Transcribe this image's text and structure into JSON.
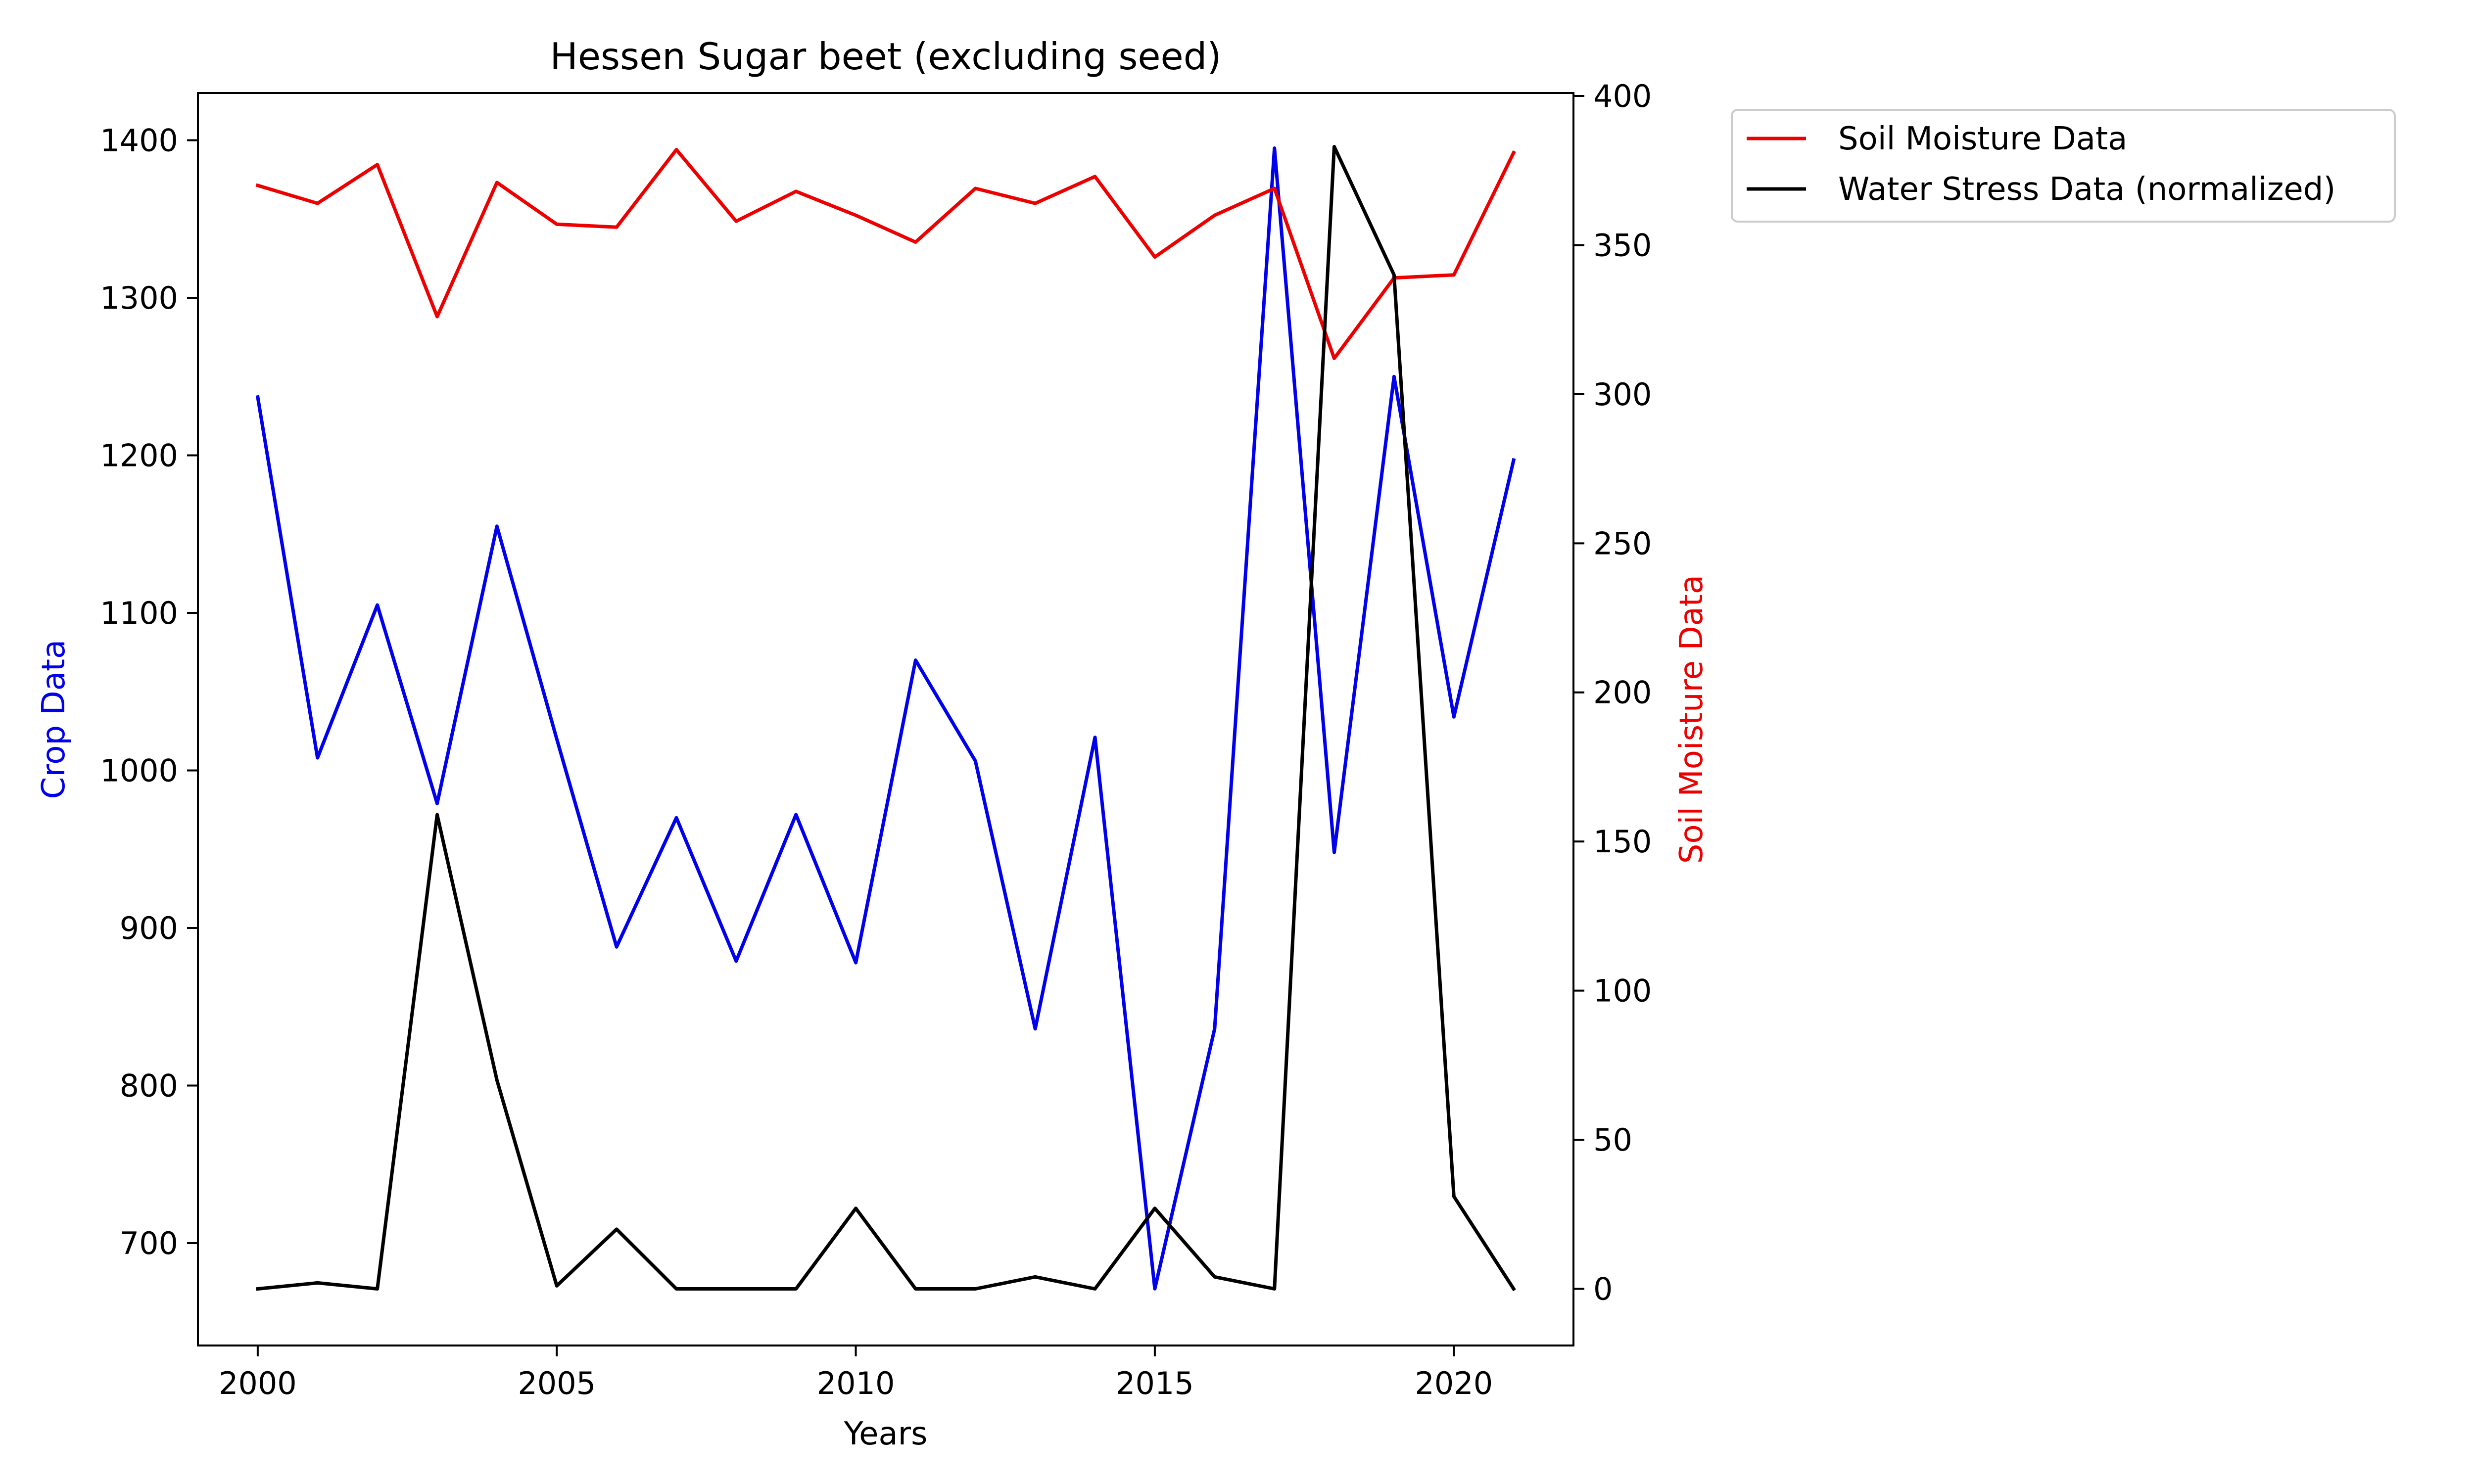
{
  "chart_data": {
    "type": "line",
    "title": "Hessen Sugar beet (excluding seed)",
    "xlabel": "Years",
    "ylabel_left": "Crop Data",
    "ylabel_right": "Soil Moisture Data",
    "x": [
      2000,
      2001,
      2002,
      2003,
      2004,
      2005,
      2006,
      2007,
      2008,
      2009,
      2010,
      2011,
      2012,
      2013,
      2014,
      2015,
      2016,
      2017,
      2018,
      2019,
      2020,
      2021
    ],
    "xlim": [
      1999,
      2022
    ],
    "x_ticks": [
      "2000",
      "2005",
      "2010",
      "2015",
      "2020"
    ],
    "ylim_left": [
      635,
      1430
    ],
    "y_ticks_left": [
      "700",
      "800",
      "900",
      "1000",
      "1100",
      "1200",
      "1300",
      "1400"
    ],
    "ylim_right": [
      -19,
      401
    ],
    "y_ticks_right": [
      "0",
      "50",
      "100",
      "150",
      "200",
      "250",
      "300",
      "350",
      "400"
    ],
    "grid": false,
    "legend_position": "outside-right-top",
    "series": [
      {
        "name": "Crop Data",
        "axis": "left",
        "color": "#0000ee",
        "values": [
          1237,
          1008,
          1105,
          979,
          1155,
          1020,
          888,
          970,
          879,
          972,
          878,
          1070,
          1006,
          836,
          1021,
          671,
          836,
          1395,
          948,
          1250,
          1034,
          1197
        ]
      },
      {
        "name": "Soil Moisture Data",
        "axis": "right",
        "color": "#ee0000",
        "values": [
          370,
          364,
          377,
          326,
          371,
          357,
          356,
          382,
          358,
          368,
          360,
          351,
          369,
          364,
          373,
          346,
          360,
          369,
          312,
          339,
          340,
          381
        ]
      },
      {
        "name": "Water Stress Data (normalized)",
        "axis": "right",
        "color": "#000000",
        "values": [
          0,
          2,
          0,
          159,
          70,
          1,
          20,
          0,
          0,
          0,
          27,
          0,
          0,
          4,
          0,
          27,
          4,
          0,
          383,
          340,
          31,
          0
        ]
      }
    ],
    "legend": [
      "Soil Moisture Data",
      "Water Stress Data (normalized)"
    ]
  }
}
